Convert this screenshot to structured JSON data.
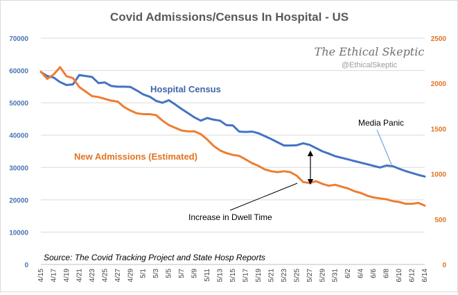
{
  "chart_data": {
    "type": "line",
    "title": "Covid Admissions/Census  In Hospital - US",
    "y_left": {
      "ylim": [
        0,
        70000
      ],
      "ticks": [
        "0",
        "10000",
        "20000",
        "30000",
        "40000",
        "50000",
        "60000",
        "70000"
      ]
    },
    "y_right": {
      "ylim": [
        0,
        2500
      ],
      "ticks": [
        "0",
        "500",
        "1000",
        "1500",
        "2000",
        "2500"
      ]
    },
    "x_ticks": [
      "4/15",
      "4/17",
      "4/19",
      "4/21",
      "4/23",
      "4/25",
      "4/27",
      "4/29",
      "5/1",
      "5/3",
      "5/5",
      "5/7",
      "5/9",
      "5/11",
      "5/13",
      "5/15",
      "5/17",
      "5/19",
      "5/21",
      "5/23",
      "5/25",
      "5/27",
      "5/29",
      "5/31",
      "6/2",
      "6/4",
      "6/6",
      "6/8",
      "6/10",
      "6/12",
      "6/14"
    ],
    "grid": "horizontal",
    "series": [
      {
        "name": "Hospital Census",
        "axis": "left",
        "color": "#4472c4",
        "values": [
          59500,
          58300,
          57800,
          56400,
          55500,
          55700,
          58600,
          58300,
          58000,
          56100,
          56300,
          55200,
          55000,
          55000,
          54900,
          53800,
          52600,
          51900,
          50600,
          50000,
          50800,
          49500,
          48100,
          46800,
          45500,
          44500,
          45300,
          44800,
          44500,
          43100,
          43000,
          41100,
          41000,
          41100,
          40600,
          39700,
          38800,
          37800,
          36800,
          36800,
          36900,
          37500,
          37000,
          36000,
          35000,
          34300,
          33500,
          33000,
          32500,
          32000,
          31500,
          31000,
          30500,
          30000,
          30600,
          30400,
          29600,
          28900,
          28300,
          27700,
          27200
        ]
      },
      {
        "name": "New Admissions (Estimated)",
        "axis": "right",
        "color": "#ed7d31",
        "values": [
          2130,
          2050,
          2100,
          2180,
          2080,
          2060,
          1960,
          1910,
          1860,
          1850,
          1830,
          1810,
          1800,
          1740,
          1700,
          1670,
          1660,
          1660,
          1650,
          1590,
          1540,
          1510,
          1480,
          1470,
          1470,
          1440,
          1380,
          1310,
          1260,
          1230,
          1210,
          1200,
          1160,
          1120,
          1090,
          1050,
          1030,
          1020,
          1030,
          1020,
          980,
          910,
          900,
          920,
          890,
          870,
          880,
          860,
          840,
          810,
          790,
          760,
          740,
          730,
          720,
          700,
          690,
          670,
          670,
          680,
          650
        ]
      }
    ],
    "annotations": {
      "census_label": "Hospital Census",
      "admissions_label": "New Admissions (Estimated)",
      "media_panic": "Media Panic",
      "dwell_time": "Increase in Dwell Time",
      "source": "Source: The Covid Tracking Project and State Hosp Reports"
    },
    "watermark": {
      "name": "The Ethical Skeptic",
      "handle": "@EthicalSkeptic"
    }
  }
}
